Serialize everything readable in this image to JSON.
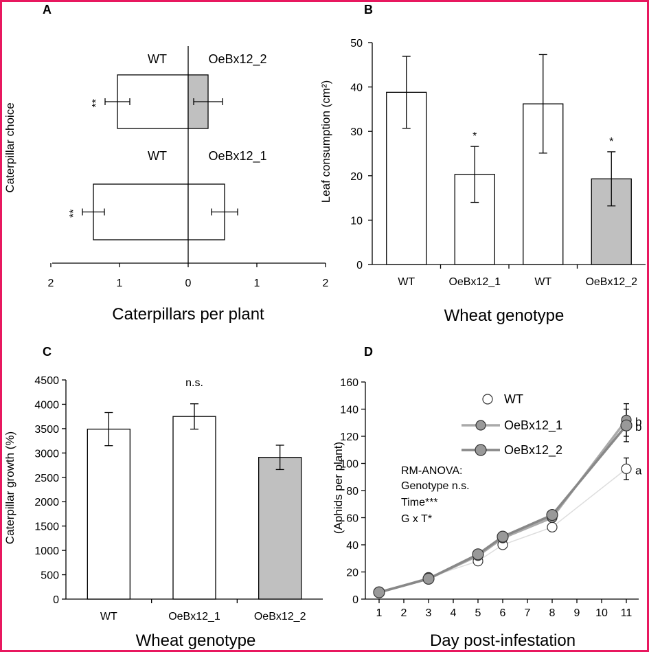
{
  "colors": {
    "frame": "#e8185f",
    "open_fill": "#ffffff",
    "grey_fill": "#c0c0c0",
    "stroke": "#000000",
    "line_wt": "#dddddd",
    "line_1": "#aaaaaa",
    "line_2": "#888888",
    "marker_grey": "#999999"
  },
  "panels": {
    "A": {
      "letter": "A"
    },
    "B": {
      "letter": "B"
    },
    "C": {
      "letter": "C"
    },
    "D": {
      "letter": "D"
    }
  },
  "chart_data": [
    {
      "panel": "A",
      "type": "bar",
      "orientation": "horizontal",
      "ylabel": "Caterpillar choice",
      "xlabel": "Caterpillars per plant",
      "xlim": [
        -2,
        2
      ],
      "x_ticks": [
        "2",
        "1",
        "0",
        "1",
        "2"
      ],
      "pairs": [
        {
          "left_label": "WT",
          "right_label": "OeBx12_2",
          "left_value": 1.03,
          "left_err": 0.18,
          "right_value": 0.29,
          "right_err": 0.21,
          "right_color": "grey",
          "significance": "**"
        },
        {
          "left_label": "WT",
          "right_label": "OeBx12_1",
          "left_value": 1.38,
          "left_err": 0.16,
          "right_value": 0.53,
          "right_err": 0.19,
          "right_color": "white",
          "significance": "**"
        }
      ]
    },
    {
      "panel": "B",
      "type": "bar",
      "categories": [
        "WT",
        "OeBx12_1",
        "WT",
        "OeBx12_2"
      ],
      "values": [
        38.8,
        20.3,
        36.2,
        19.3
      ],
      "errors": [
        8.1,
        6.3,
        11.1,
        6.1
      ],
      "bar_colors": [
        "white",
        "white",
        "white",
        "grey"
      ],
      "significance": [
        "",
        "*",
        "",
        "*"
      ],
      "ylim": [
        0,
        50
      ],
      "y_ticks": [
        "0",
        "10",
        "20",
        "30",
        "40",
        "50"
      ],
      "ylabel": "Leaf consumption  (cm²)",
      "xlabel": "Wheat genotype"
    },
    {
      "panel": "C",
      "type": "bar",
      "categories": [
        "WT",
        "OeBx12_1",
        "OeBx12_2"
      ],
      "values": [
        3490,
        3750,
        2910
      ],
      "errors": [
        340,
        260,
        250
      ],
      "bar_colors": [
        "white",
        "white",
        "grey"
      ],
      "annotation": "n.s.",
      "ylim": [
        0,
        4500
      ],
      "y_ticks": [
        "0",
        "500",
        "1000",
        "1500",
        "2000",
        "2500",
        "3000",
        "3500",
        "4000",
        "4500"
      ],
      "ylabel": "Caterpillar growth (%)",
      "xlabel": "Wheat genotype"
    },
    {
      "panel": "D",
      "type": "line",
      "x": [
        1,
        3,
        5,
        6,
        8,
        11
      ],
      "x_ticks": [
        "1",
        "2",
        "3",
        "4",
        "5",
        "6",
        "7",
        "8",
        "9",
        "10",
        "11"
      ],
      "y_ticks": [
        "0",
        "20",
        "40",
        "60",
        "80",
        "100",
        "120",
        "140",
        "160"
      ],
      "xlim": [
        0.5,
        11.5
      ],
      "ylim": [
        0,
        160
      ],
      "xlabel": "Day post-infestation",
      "ylabel": "(Aphids per plant)",
      "series": [
        {
          "name": "WT",
          "values": [
            5,
            16,
            28,
            40,
            53,
            96
          ],
          "err_last": 8,
          "style": "open"
        },
        {
          "name": "OeBx12_1",
          "values": [
            5,
            15,
            32,
            45,
            60,
            132
          ],
          "err_last": 12,
          "style": "light"
        },
        {
          "name": "OeBx12_2",
          "values": [
            5,
            15,
            33,
            46,
            62,
            128
          ],
          "err_last": 12,
          "style": "dark"
        }
      ],
      "end_labels": [
        "a",
        "b",
        "b"
      ],
      "annotation_lines": [
        "RM-ANOVA:",
        "Genotype n.s.",
        "Time***",
        "G x T*"
      ]
    }
  ]
}
